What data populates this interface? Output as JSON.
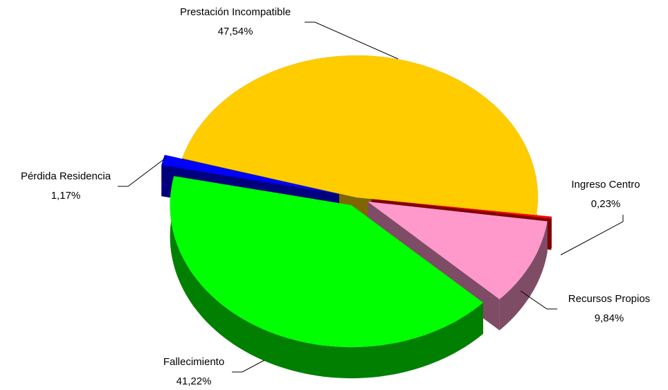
{
  "chart_data": {
    "type": "pie",
    "categories": [
      "Prestación Incompatible",
      "Ingreso Centro",
      "Recursos Propios",
      "Fallecimiento",
      "Pérdida Residencia"
    ],
    "values": [
      47.54,
      0.23,
      9.84,
      41.22,
      1.17
    ],
    "value_labels": [
      "47,54%",
      "0,23%",
      "9,84%",
      "41,22%",
      "1,17%"
    ],
    "colors": [
      "#FFCC00",
      "#FF0000",
      "#FF99CC",
      "#00FF00",
      "#0000FF"
    ]
  }
}
